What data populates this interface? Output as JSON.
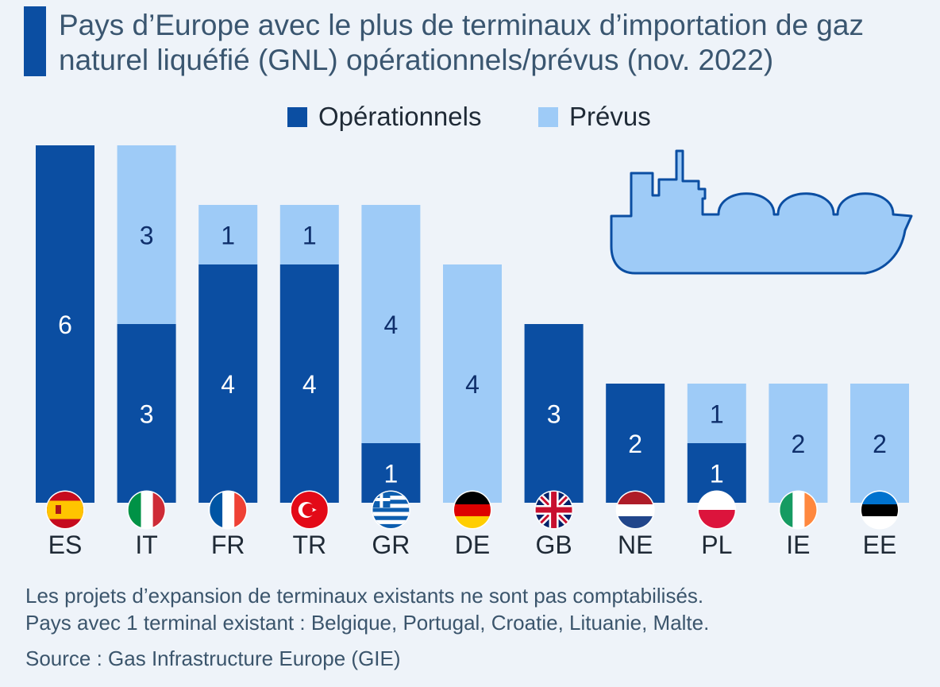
{
  "title": "Pays d’Europe avec le plus de terminaux d’importation de gaz naturel liquéfié (GNL) opérationnels/prévus (nov. 2022)",
  "legend": {
    "operational": "Opérationnels",
    "planned": "Prévus"
  },
  "colors": {
    "operational": "#0b4ea2",
    "planned": "#9ecbf7",
    "operational_text": "#ffffff",
    "planned_text": "#0f2f6b",
    "accent": "#0b4ea2"
  },
  "notes": {
    "line1": "Les projets d’expansion de terminaux existants ne sont pas comptabilisés.",
    "line2": "Pays avec 1 terminal existant : Belgique, Portugal, Croatie, Lituanie, Malte.",
    "source": "Source : Gas Infrastructure Europe (GIE)"
  },
  "chart_data": {
    "type": "bar",
    "stacked": true,
    "title": "Pays d’Europe avec le plus de terminaux d’importation de gaz naturel liquéfié (GNL) opérationnels/prévus (nov. 2022)",
    "categories": [
      "ES",
      "IT",
      "FR",
      "TR",
      "GR",
      "DE",
      "GB",
      "NE",
      "PL",
      "IE",
      "EE"
    ],
    "series": [
      {
        "name": "Opérationnels",
        "values": [
          6,
          3,
          4,
          4,
          1,
          0,
          3,
          2,
          1,
          0,
          0
        ]
      },
      {
        "name": "Prévus",
        "values": [
          0,
          3,
          1,
          1,
          4,
          4,
          0,
          0,
          1,
          2,
          2
        ]
      }
    ],
    "ylim": [
      0,
      6
    ],
    "grid": false,
    "legend_position": "top-center",
    "flags": [
      "spain-flag-icon",
      "italy-flag-icon",
      "france-flag-icon",
      "turkey-flag-icon",
      "greece-flag-icon",
      "germany-flag-icon",
      "uk-flag-icon",
      "netherlands-flag-icon",
      "poland-flag-icon",
      "ireland-flag-icon",
      "estonia-flag-icon"
    ]
  }
}
